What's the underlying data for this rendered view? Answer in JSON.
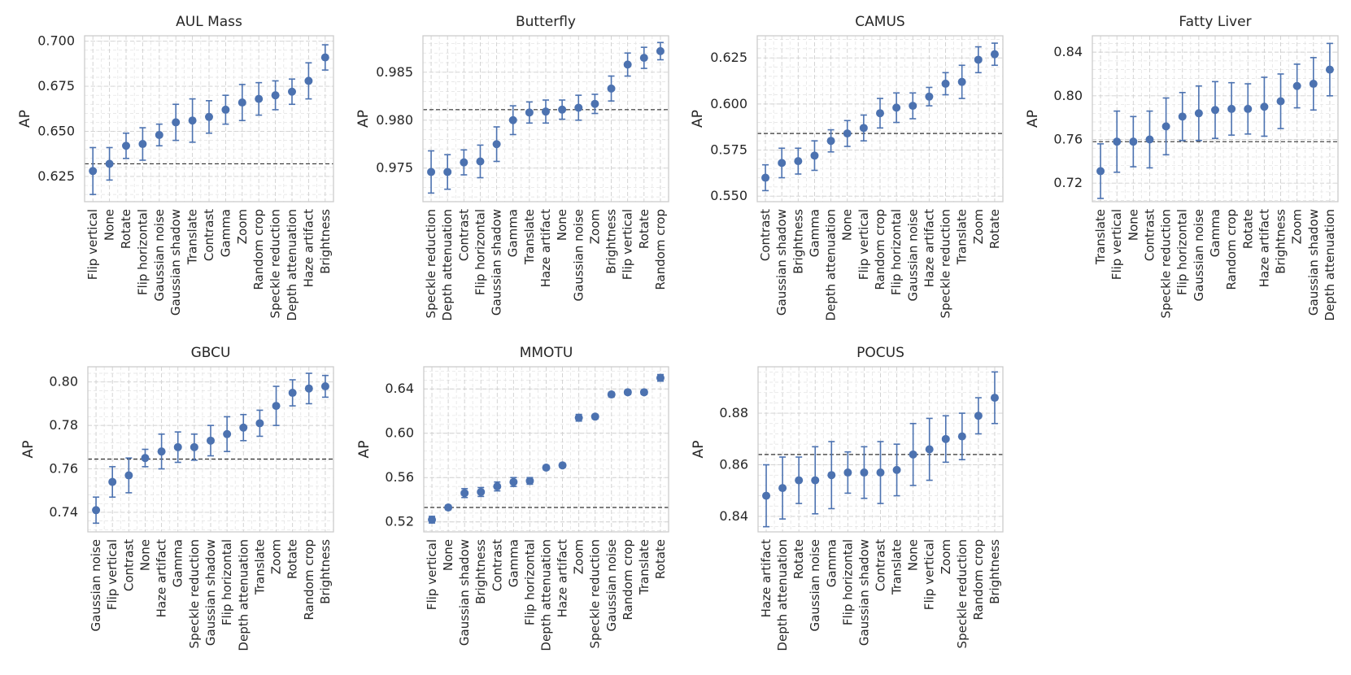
{
  "chart_data": [
    {
      "type": "scatter",
      "title": "AUL Mass",
      "ylabel": "AP",
      "ylim": [
        0.611,
        0.703
      ],
      "yticks": [
        0.625,
        0.65,
        0.675,
        0.7
      ],
      "ytick_labels": [
        "0.625",
        "0.650",
        "0.675",
        "0.700"
      ],
      "baseline": 0.632,
      "categories": [
        "Flip vertical",
        "None",
        "Rotate",
        "Flip horizontal",
        "Gaussian noise",
        "Gaussian shadow",
        "Translate",
        "Contrast",
        "Gamma",
        "Zoom",
        "Random crop",
        "Speckle reduction",
        "Depth attenuation",
        "Haze artifact",
        "Brightness"
      ],
      "values": [
        0.628,
        0.632,
        0.642,
        0.643,
        0.648,
        0.655,
        0.656,
        0.658,
        0.662,
        0.666,
        0.668,
        0.67,
        0.672,
        0.678,
        0.691
      ],
      "err": [
        0.013,
        0.009,
        0.007,
        0.009,
        0.006,
        0.01,
        0.012,
        0.009,
        0.008,
        0.01,
        0.009,
        0.008,
        0.007,
        0.01,
        0.007
      ]
    },
    {
      "type": "scatter",
      "title": "Butterfly",
      "ylabel": "AP",
      "ylim": [
        0.9715,
        0.9888
      ],
      "yticks": [
        0.975,
        0.98,
        0.985
      ],
      "ytick_labels": [
        "0.975",
        "0.980",
        "0.985"
      ],
      "baseline": 0.9811,
      "categories": [
        "Speckle reduction",
        "Depth attenuation",
        "Contrast",
        "Flip horizontal",
        "Gaussian shadow",
        "Gamma",
        "Translate",
        "Haze artifact",
        "None",
        "Gaussian noise",
        "Zoom",
        "Brightness",
        "Flip vertical",
        "Rotate",
        "Random crop"
      ],
      "values": [
        0.9746,
        0.9746,
        0.9756,
        0.9757,
        0.9775,
        0.98,
        0.9808,
        0.9809,
        0.9811,
        0.9813,
        0.9817,
        0.9833,
        0.9858,
        0.9865,
        0.9872
      ],
      "err": [
        0.0022,
        0.0018,
        0.0013,
        0.0017,
        0.0018,
        0.0015,
        0.0011,
        0.0012,
        0.001,
        0.0013,
        0.001,
        0.0013,
        0.0012,
        0.0011,
        0.0009
      ]
    },
    {
      "type": "scatter",
      "title": "CAMUS",
      "ylabel": "AP",
      "ylim": [
        0.547,
        0.637
      ],
      "yticks": [
        0.55,
        0.575,
        0.6,
        0.625
      ],
      "ytick_labels": [
        "0.550",
        "0.575",
        "0.600",
        "0.625"
      ],
      "baseline": 0.584,
      "categories": [
        "Contrast",
        "Gaussian shadow",
        "Brightness",
        "Gamma",
        "Depth attenuation",
        "None",
        "Flip vertical",
        "Random crop",
        "Flip horizontal",
        "Gaussian noise",
        "Haze artifact",
        "Speckle reduction",
        "Translate",
        "Zoom",
        "Rotate"
      ],
      "values": [
        0.56,
        0.568,
        0.569,
        0.572,
        0.58,
        0.584,
        0.587,
        0.595,
        0.598,
        0.599,
        0.604,
        0.611,
        0.612,
        0.624,
        0.627
      ],
      "err": [
        0.007,
        0.008,
        0.007,
        0.008,
        0.006,
        0.007,
        0.007,
        0.008,
        0.008,
        0.007,
        0.005,
        0.006,
        0.009,
        0.007,
        0.006
      ]
    },
    {
      "type": "scatter",
      "title": "Fatty Liver",
      "ylabel": "AP",
      "ylim": [
        0.703,
        0.855
      ],
      "yticks": [
        0.72,
        0.76,
        0.8,
        0.84
      ],
      "ytick_labels": [
        "0.72",
        "0.76",
        "0.80",
        "0.84"
      ],
      "baseline": 0.758,
      "categories": [
        "Translate",
        "Flip vertical",
        "None",
        "Contrast",
        "Speckle reduction",
        "Flip horizontal",
        "Gaussian noise",
        "Gamma",
        "Random crop",
        "Rotate",
        "Haze artifact",
        "Brightness",
        "Zoom",
        "Gaussian shadow",
        "Depth attenuation"
      ],
      "values": [
        0.731,
        0.758,
        0.758,
        0.76,
        0.772,
        0.781,
        0.784,
        0.787,
        0.788,
        0.788,
        0.79,
        0.795,
        0.809,
        0.811,
        0.824
      ],
      "err": [
        0.025,
        0.028,
        0.023,
        0.026,
        0.026,
        0.022,
        0.025,
        0.026,
        0.024,
        0.023,
        0.027,
        0.025,
        0.02,
        0.024,
        0.024
      ]
    },
    {
      "type": "scatter",
      "title": "GBCU",
      "ylabel": "AP",
      "ylim": [
        0.731,
        0.807
      ],
      "yticks": [
        0.74,
        0.76,
        0.78,
        0.8
      ],
      "ytick_labels": [
        "0.74",
        "0.76",
        "0.78",
        "0.80"
      ],
      "baseline": 0.7645,
      "categories": [
        "Gaussian noise",
        "Flip vertical",
        "Contrast",
        "None",
        "Haze artifact",
        "Gamma",
        "Speckle reduction",
        "Gaussian shadow",
        "Flip horizontal",
        "Depth attenuation",
        "Translate",
        "Zoom",
        "Rotate",
        "Random crop",
        "Brightness"
      ],
      "values": [
        0.741,
        0.754,
        0.757,
        0.765,
        0.768,
        0.77,
        0.77,
        0.773,
        0.776,
        0.779,
        0.781,
        0.789,
        0.795,
        0.797,
        0.798
      ],
      "err": [
        0.006,
        0.007,
        0.008,
        0.004,
        0.008,
        0.007,
        0.006,
        0.007,
        0.008,
        0.006,
        0.006,
        0.009,
        0.006,
        0.007,
        0.005
      ]
    },
    {
      "type": "scatter",
      "title": "MMOTU",
      "ylabel": "AP",
      "ylim": [
        0.511,
        0.66
      ],
      "yticks": [
        0.52,
        0.56,
        0.6,
        0.64
      ],
      "ytick_labels": [
        "0.52",
        "0.56",
        "0.60",
        "0.64"
      ],
      "baseline": 0.533,
      "categories": [
        "Flip vertical",
        "None",
        "Gaussian shadow",
        "Brightness",
        "Contrast",
        "Gamma",
        "Flip horizontal",
        "Depth attenuation",
        "Haze artifact",
        "Zoom",
        "Speckle reduction",
        "Gaussian noise",
        "Random crop",
        "Translate",
        "Rotate"
      ],
      "values": [
        0.522,
        0.533,
        0.546,
        0.547,
        0.552,
        0.556,
        0.557,
        0.569,
        0.571,
        0.614,
        0.615,
        0.635,
        0.637,
        0.637,
        0.65
      ],
      "err": [
        0.003,
        0.002,
        0.004,
        0.004,
        0.004,
        0.004,
        0.003,
        0.002,
        0.002,
        0.003,
        0.002,
        0.002,
        0.002,
        0.002,
        0.003
      ]
    },
    {
      "type": "scatter",
      "title": "POCUS",
      "ylabel": "AP",
      "ylim": [
        0.834,
        0.898
      ],
      "yticks": [
        0.84,
        0.86,
        0.88
      ],
      "ytick_labels": [
        "0.84",
        "0.86",
        "0.88"
      ],
      "baseline": 0.864,
      "categories": [
        "Haze artifact",
        "Depth attenuation",
        "Rotate",
        "Gaussian noise",
        "Gamma",
        "Flip horizontal",
        "Gaussian shadow",
        "Contrast",
        "Translate",
        "None",
        "Flip vertical",
        "Zoom",
        "Speckle reduction",
        "Random crop",
        "Brightness"
      ],
      "values": [
        0.848,
        0.851,
        0.854,
        0.854,
        0.856,
        0.857,
        0.857,
        0.857,
        0.858,
        0.864,
        0.866,
        0.87,
        0.871,
        0.879,
        0.886
      ],
      "err": [
        0.012,
        0.012,
        0.009,
        0.013,
        0.013,
        0.008,
        0.01,
        0.012,
        0.01,
        0.012,
        0.012,
        0.009,
        0.009,
        0.007,
        0.01
      ]
    }
  ]
}
